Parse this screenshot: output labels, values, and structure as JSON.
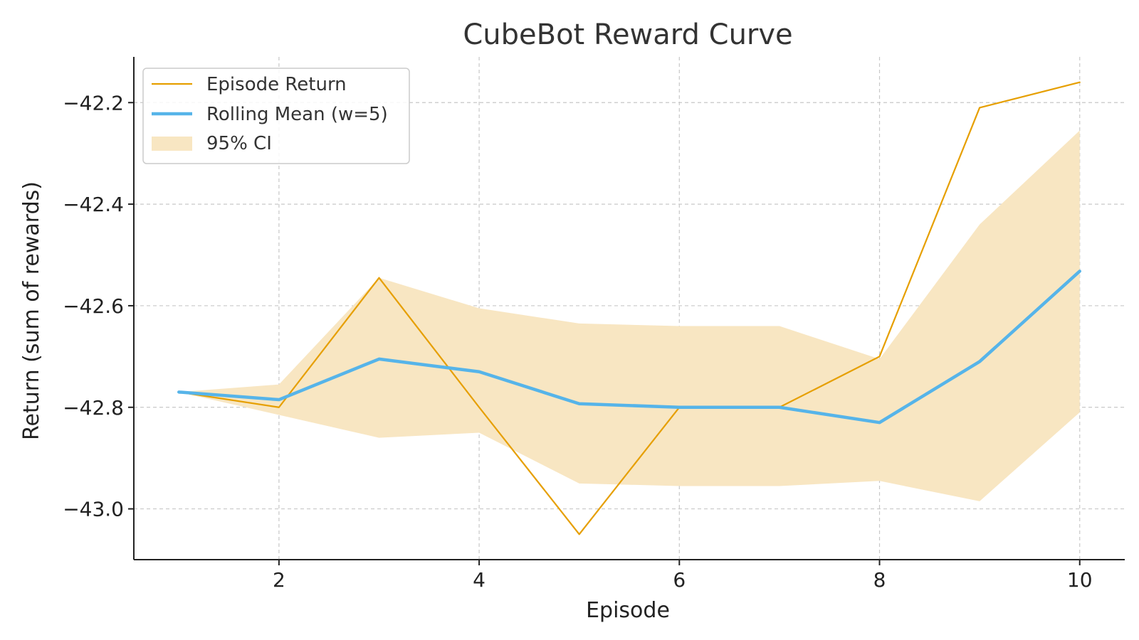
{
  "chart_data": {
    "type": "line",
    "title": "CubeBot Reward Curve",
    "xlabel": "Episode",
    "ylabel": "Return (sum of rewards)",
    "x": [
      1,
      2,
      3,
      4,
      5,
      6,
      7,
      8,
      9,
      10
    ],
    "xlim": [
      0.55,
      10.45
    ],
    "ylim": [
      -43.1,
      -42.11
    ],
    "xticks": [
      2,
      4,
      6,
      8,
      10
    ],
    "xtick_labels": [
      "2",
      "4",
      "6",
      "8",
      "10"
    ],
    "yticks": [
      -43.0,
      -42.8,
      -42.6,
      -42.4,
      -42.2
    ],
    "ytick_labels": [
      "−43.0",
      "−42.8",
      "−42.6",
      "−42.4",
      "−42.2"
    ],
    "grid": true,
    "legend_position": "top-left",
    "series": [
      {
        "name": "Episode Return",
        "color": "#E69F00",
        "values": [
          -42.77,
          -42.8,
          -42.545,
          -42.8,
          -43.05,
          -42.8,
          -42.8,
          -42.7,
          -42.21,
          -42.16
        ]
      },
      {
        "name": "Rolling Mean (w=5)",
        "color": "#56B4E9",
        "values": [
          -42.77,
          -42.785,
          -42.705,
          -42.73,
          -42.793,
          -42.8,
          -42.8,
          -42.83,
          -42.71,
          -42.532
        ]
      }
    ],
    "band": {
      "name": "95% CI",
      "color": "#F8E6C2",
      "upper": [
        -42.77,
        -42.755,
        -42.545,
        -42.605,
        -42.635,
        -42.64,
        -42.64,
        -42.705,
        -42.44,
        -42.255
      ],
      "lower": [
        -42.77,
        -42.815,
        -42.86,
        -42.85,
        -42.95,
        -42.955,
        -42.955,
        -42.945,
        -42.985,
        -42.81
      ]
    }
  }
}
